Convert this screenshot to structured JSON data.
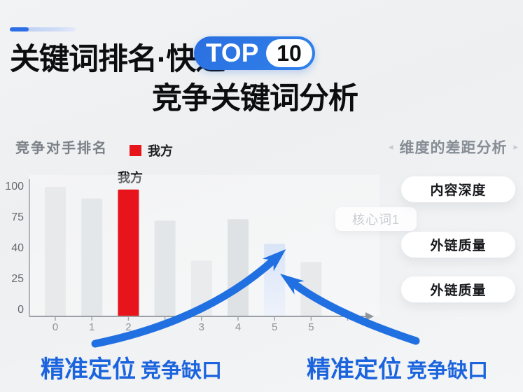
{
  "header": {
    "title_line1": "关键词排名·快速",
    "badge_text": "TOP",
    "badge_number": "10",
    "title_line2": "竞争关键词分析"
  },
  "chart": {
    "title": "竞争对手排名",
    "legend_label": "我方",
    "bar_annotation": "我方"
  },
  "chart_data": {
    "type": "bar",
    "title": "竞争对手排名",
    "categories": [
      "0",
      "1",
      "2",
      "",
      "3",
      "4",
      "5",
      "5"
    ],
    "values": [
      100,
      91,
      98,
      74,
      43,
      75,
      56,
      42
    ],
    "bar_colors": [
      "#e7e9eb",
      "#e4e7e9",
      "#e8141b",
      "#e3e6e8",
      "#e9ebed",
      "#dfe2e5",
      "#dce6f6",
      "#e7e9eb"
    ],
    "red_index": 2,
    "red_color": "#e8141b",
    "blue_index": 6,
    "blue_color": "#dce6f6",
    "annotated_bar": {
      "index": 2,
      "label": "我方"
    },
    "legend": [
      "我方"
    ],
    "y_axis_labels": [
      "100",
      "75",
      "40",
      "25",
      "0"
    ],
    "ylim": [
      0,
      100
    ],
    "xlabel": "",
    "ylabel": "",
    "grid": false,
    "legend_position": "top"
  },
  "watermark": {
    "label": "核心词1"
  },
  "right_panel": {
    "chevron_left": "◂",
    "chevron_right": "▸",
    "header": "维度的差距分析",
    "pills": [
      "内容深度",
      "外链质量",
      "外链质量"
    ]
  },
  "callouts": {
    "left_strong": "精准定位",
    "left_rest": "竞争缺口",
    "right_strong": "精准定位",
    "right_rest": "竞争缺口"
  },
  "colors": {
    "accent_blue": "#2070e2",
    "badge_blue": "#2b79e8",
    "our_red": "#e8141b",
    "callout_blue": "#1b64dd",
    "axis_gray": "#9aa0a6"
  }
}
